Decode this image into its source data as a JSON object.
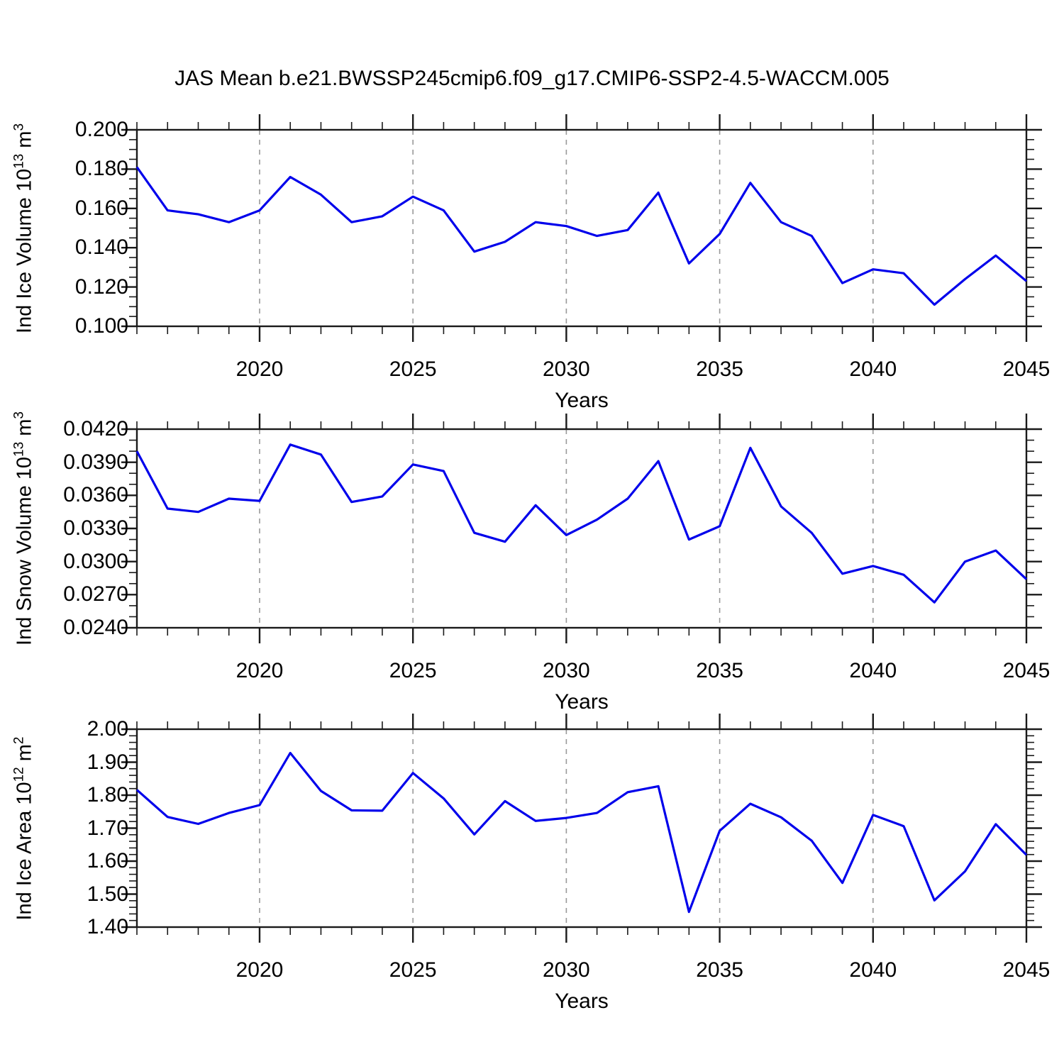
{
  "title": "JAS Mean b.e21.BWSSP245cmip6.f09_g17.CMIP6-SSP2-4.5-WACCM.005",
  "colors": {
    "line": "#0000eb",
    "grid": "#999999",
    "axis": "#1a1a1a",
    "text": "#000000",
    "background": "#ffffff"
  },
  "x_axis": {
    "label": "Years",
    "start_year": 2016,
    "end_year": 2045,
    "major_tick_years": [
      2020,
      2025,
      2030,
      2035,
      2040,
      2045
    ],
    "grid_years": [
      2020,
      2025,
      2030,
      2035,
      2040
    ],
    "years": [
      2016,
      2017,
      2018,
      2019,
      2020,
      2021,
      2022,
      2023,
      2024,
      2025,
      2026,
      2027,
      2028,
      2029,
      2030,
      2031,
      2032,
      2033,
      2034,
      2035,
      2036,
      2037,
      2038,
      2039,
      2040,
      2041,
      2042,
      2043,
      2044,
      2045
    ]
  },
  "chart_data": [
    {
      "type": "line",
      "panel": "ind-ice-volume",
      "title": "",
      "ylabel": {
        "prefix": "Ind Ice Volume 10",
        "exponent": "13",
        "unit": " m",
        "unit_exponent": "3"
      },
      "xlabel": "Years",
      "ylim": [
        0.1,
        0.2
      ],
      "ytick_labels": [
        "0.200",
        "0.180",
        "0.160",
        "0.140",
        "0.120",
        "0.100"
      ],
      "ytick_values": [
        0.2,
        0.18,
        0.16,
        0.14,
        0.12,
        0.1
      ],
      "yminor_step": 0.005,
      "grid": "vertical-dashed",
      "legend": "none",
      "values": [
        0.181,
        0.159,
        0.157,
        0.153,
        0.159,
        0.176,
        0.167,
        0.153,
        0.156,
        0.166,
        0.159,
        0.138,
        0.143,
        0.153,
        0.151,
        0.146,
        0.149,
        0.168,
        0.132,
        0.147,
        0.173,
        0.153,
        0.146,
        0.122,
        0.129,
        0.127,
        0.111,
        0.124,
        0.136,
        0.123
      ]
    },
    {
      "type": "line",
      "panel": "ind-snow-volume",
      "title": "",
      "ylabel": {
        "prefix": "Ind Snow Volume 10",
        "exponent": "13",
        "unit": " m",
        "unit_exponent": "3"
      },
      "xlabel": "Years",
      "ylim": [
        0.024,
        0.042
      ],
      "ytick_labels": [
        "0.0420",
        "0.0390",
        "0.0360",
        "0.0330",
        "0.0300",
        "0.0270",
        "0.0240"
      ],
      "ytick_values": [
        0.042,
        0.039,
        0.036,
        0.033,
        0.03,
        0.027,
        0.024
      ],
      "yminor_step": 0.001,
      "grid": "vertical-dashed",
      "legend": "none",
      "values": [
        0.04,
        0.0348,
        0.0345,
        0.0357,
        0.0355,
        0.0406,
        0.0397,
        0.0354,
        0.0359,
        0.0388,
        0.0382,
        0.0326,
        0.0318,
        0.0351,
        0.0324,
        0.0338,
        0.0357,
        0.0391,
        0.032,
        0.0332,
        0.0403,
        0.035,
        0.0326,
        0.0289,
        0.0296,
        0.0288,
        0.0263,
        0.03,
        0.031,
        0.0284
      ]
    },
    {
      "type": "line",
      "panel": "ind-ice-area",
      "title": "",
      "ylabel": {
        "prefix": "Ind Ice Area 10",
        "exponent": "12",
        "unit": " m",
        "unit_exponent": "2"
      },
      "xlabel": "Years",
      "ylim": [
        1.4,
        2.0
      ],
      "ytick_labels": [
        "2.00",
        "1.90",
        "1.80",
        "1.70",
        "1.60",
        "1.50",
        "1.40"
      ],
      "ytick_values": [
        2.0,
        1.9,
        1.8,
        1.7,
        1.6,
        1.5,
        1.4
      ],
      "yminor_step": 0.02,
      "grid": "vertical-dashed",
      "legend": "none",
      "values": [
        1.816,
        1.734,
        1.713,
        1.746,
        1.77,
        1.928,
        1.813,
        1.754,
        1.753,
        1.867,
        1.79,
        1.681,
        1.782,
        1.722,
        1.731,
        1.746,
        1.809,
        1.827,
        1.446,
        1.692,
        1.774,
        1.733,
        1.662,
        1.534,
        1.74,
        1.706,
        1.481,
        1.569,
        1.712,
        1.619
      ]
    }
  ]
}
